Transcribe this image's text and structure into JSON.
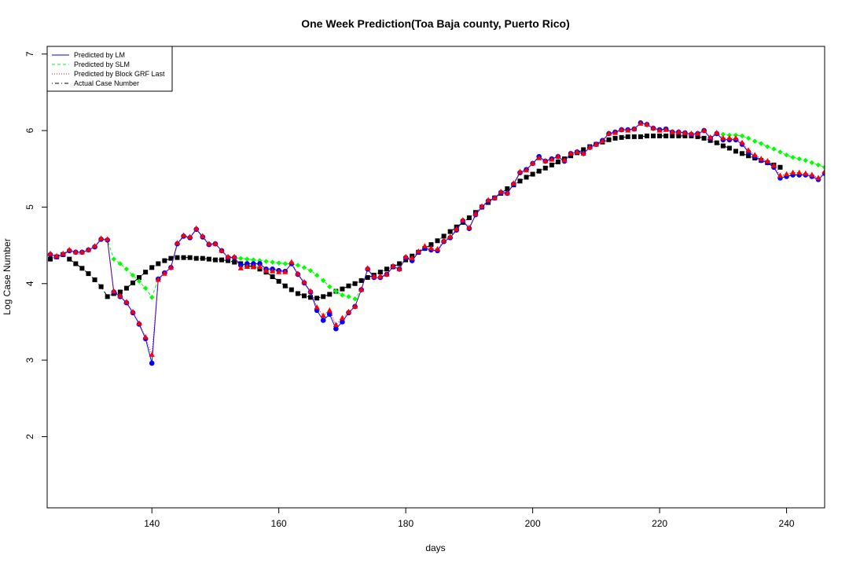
{
  "chart_data": {
    "type": "scatter",
    "title": "One Week Prediction(Toa Baja county, Puerto Rico)",
    "xlabel": "days",
    "ylabel": "Log Case Number",
    "xlim": [
      123.5,
      246
    ],
    "ylim": [
      1.07,
      7.1
    ],
    "xticks": [
      140,
      160,
      180,
      200,
      220,
      240
    ],
    "yticks": [
      2,
      3,
      4,
      5,
      6,
      7
    ],
    "grid": false,
    "legend_position": "top-left",
    "series": [
      {
        "name": "Predicted by LM",
        "line_color": "#0000ff",
        "line_style": "solid",
        "marker": "circle",
        "marker_color": "#0000ff",
        "x": [
          124,
          125,
          126,
          127,
          128,
          129,
          130,
          131,
          132,
          133,
          134,
          135,
          136,
          137,
          138,
          139,
          140,
          141,
          142,
          143,
          144,
          145,
          146,
          147,
          148,
          149,
          150,
          151,
          152,
          153,
          154,
          155,
          156,
          157,
          158,
          159,
          160,
          161,
          162,
          163,
          164,
          165,
          166,
          167,
          168,
          169,
          170,
          171,
          172,
          173,
          174,
          175,
          176,
          177,
          178,
          179,
          180,
          181,
          182,
          183,
          184,
          185,
          186,
          187,
          188,
          189,
          190,
          191,
          192,
          193,
          194,
          195,
          196,
          197,
          198,
          199,
          200,
          201,
          202,
          203,
          204,
          205,
          206,
          207,
          208,
          209,
          210,
          211,
          212,
          213,
          214,
          215,
          216,
          217,
          218,
          219,
          220,
          221,
          222,
          223,
          224,
          225,
          226,
          227,
          228,
          229,
          230,
          231,
          232,
          233,
          234,
          235,
          236,
          237,
          238,
          239,
          240,
          241,
          242,
          243,
          244,
          245,
          246
        ],
        "y": [
          4.38,
          4.35,
          4.38,
          4.43,
          4.41,
          4.41,
          4.44,
          4.48,
          4.58,
          4.57,
          3.89,
          3.83,
          3.75,
          3.62,
          3.47,
          3.28,
          2.96,
          4.06,
          4.14,
          4.21,
          4.52,
          4.62,
          4.6,
          4.71,
          4.61,
          4.51,
          4.52,
          4.43,
          4.34,
          4.34,
          4.24,
          4.26,
          4.26,
          4.26,
          4.19,
          4.19,
          4.17,
          4.16,
          4.26,
          4.12,
          4.01,
          3.89,
          3.65,
          3.52,
          3.6,
          3.41,
          3.5,
          3.62,
          3.7,
          3.92,
          4.19,
          4.08,
          4.08,
          4.12,
          4.22,
          4.19,
          4.34,
          4.3,
          4.41,
          4.46,
          4.44,
          4.43,
          4.55,
          4.6,
          4.7,
          4.82,
          4.72,
          4.9,
          5.0,
          5.08,
          5.12,
          5.19,
          5.18,
          5.3,
          5.45,
          5.49,
          5.57,
          5.66,
          5.6,
          5.63,
          5.66,
          5.6,
          5.7,
          5.72,
          5.7,
          5.78,
          5.82,
          5.87,
          5.96,
          5.98,
          6.01,
          6.01,
          6.02,
          6.1,
          6.08,
          6.03,
          6.01,
          6.02,
          5.98,
          5.98,
          5.97,
          5.95,
          5.96,
          6.0,
          5.9,
          5.96,
          5.88,
          5.88,
          5.88,
          5.82,
          5.72,
          5.66,
          5.61,
          5.58,
          5.52,
          5.38,
          5.4,
          5.42,
          5.42,
          5.42,
          5.4,
          5.36,
          5.44
        ]
      },
      {
        "name": "Predicted by SLM",
        "line_color": "#00ff00",
        "line_style": "dashed",
        "marker": "diamond",
        "marker_color": "#00ff00",
        "x": [
          124,
          125,
          126,
          127,
          128,
          129,
          130,
          131,
          132,
          133,
          134,
          135,
          136,
          137,
          138,
          139,
          140,
          141,
          142,
          143,
          144,
          145,
          146,
          147,
          148,
          149,
          150,
          151,
          152,
          153,
          154,
          155,
          156,
          157,
          158,
          159,
          160,
          161,
          162,
          163,
          164,
          165,
          166,
          167,
          168,
          169,
          170,
          171,
          172,
          173,
          174,
          175,
          176,
          177,
          178,
          179,
          180,
          181,
          182,
          183,
          184,
          185,
          186,
          187,
          188,
          189,
          190,
          191,
          192,
          193,
          194,
          195,
          196,
          197,
          198,
          199,
          200,
          201,
          202,
          203,
          204,
          205,
          206,
          207,
          208,
          209,
          210,
          211,
          212,
          213,
          214,
          215,
          216,
          217,
          218,
          219,
          220,
          221,
          222,
          223,
          224,
          225,
          226,
          227,
          228,
          229,
          230,
          231,
          232,
          233,
          234,
          235,
          236,
          237,
          238,
          239,
          240,
          241,
          242,
          243,
          244,
          245,
          246
        ],
        "y": [
          4.38,
          4.35,
          4.38,
          4.43,
          4.41,
          4.41,
          4.44,
          4.48,
          4.58,
          4.57,
          4.32,
          4.26,
          4.19,
          4.11,
          4.03,
          3.94,
          3.82,
          4.06,
          4.14,
          4.21,
          4.52,
          4.62,
          4.6,
          4.71,
          4.61,
          4.51,
          4.52,
          4.43,
          4.34,
          4.34,
          4.33,
          4.32,
          4.31,
          4.3,
          4.29,
          4.28,
          4.27,
          4.26,
          4.26,
          4.24,
          4.21,
          4.17,
          4.11,
          4.04,
          3.96,
          3.9,
          3.85,
          3.83,
          3.8,
          3.92,
          4.19,
          4.08,
          4.08,
          4.12,
          4.22,
          4.19,
          4.34,
          4.3,
          4.41,
          4.46,
          4.44,
          4.43,
          4.55,
          4.6,
          4.7,
          4.82,
          4.72,
          4.9,
          5.0,
          5.08,
          5.12,
          5.19,
          5.18,
          5.3,
          5.45,
          5.49,
          5.57,
          5.66,
          5.6,
          5.63,
          5.66,
          5.6,
          5.7,
          5.72,
          5.7,
          5.78,
          5.82,
          5.87,
          5.96,
          5.98,
          6.01,
          6.01,
          6.02,
          6.1,
          6.08,
          6.03,
          6.01,
          6.02,
          5.98,
          5.98,
          5.97,
          5.95,
          5.96,
          6.0,
          5.9,
          5.96,
          5.95,
          5.94,
          5.94,
          5.93,
          5.9,
          5.86,
          5.83,
          5.79,
          5.76,
          5.72,
          5.68,
          5.65,
          5.63,
          5.61,
          5.58,
          5.55,
          5.52
        ]
      },
      {
        "name": "Predicted by Block GRF Last",
        "line_color": "#ff0000",
        "line_style": "dotted",
        "marker": "triangle",
        "marker_color": "#ff0000",
        "x": [
          124,
          125,
          126,
          127,
          128,
          129,
          130,
          131,
          132,
          133,
          134,
          135,
          136,
          137,
          138,
          139,
          140,
          141,
          142,
          143,
          144,
          145,
          146,
          147,
          148,
          149,
          150,
          151,
          152,
          153,
          154,
          155,
          156,
          157,
          158,
          159,
          160,
          161,
          162,
          163,
          164,
          165,
          166,
          167,
          168,
          169,
          170,
          171,
          172,
          173,
          174,
          175,
          176,
          177,
          178,
          179,
          180,
          181,
          182,
          183,
          184,
          185,
          186,
          187,
          188,
          189,
          190,
          191,
          192,
          193,
          194,
          195,
          196,
          197,
          198,
          199,
          200,
          201,
          202,
          203,
          204,
          205,
          206,
          207,
          208,
          209,
          210,
          211,
          212,
          213,
          214,
          215,
          216,
          217,
          218,
          219,
          220,
          221,
          222,
          223,
          224,
          225,
          226,
          227,
          228,
          229,
          230,
          231,
          232,
          233,
          234,
          235,
          236,
          237,
          238,
          239,
          240,
          241,
          242,
          243,
          244,
          245,
          246
        ],
        "y": [
          4.39,
          4.36,
          4.39,
          4.44,
          4.41,
          4.41,
          4.44,
          4.49,
          4.59,
          4.58,
          3.9,
          3.84,
          3.76,
          3.63,
          3.48,
          3.3,
          3.07,
          4.05,
          4.13,
          4.21,
          4.53,
          4.63,
          4.61,
          4.72,
          4.62,
          4.52,
          4.52,
          4.43,
          4.35,
          4.35,
          4.2,
          4.22,
          4.22,
          4.22,
          4.17,
          4.16,
          4.15,
          4.15,
          4.28,
          4.13,
          4.02,
          3.9,
          3.69,
          3.58,
          3.65,
          3.46,
          3.55,
          3.63,
          3.7,
          3.92,
          4.2,
          4.09,
          4.09,
          4.12,
          4.23,
          4.19,
          4.35,
          4.33,
          4.42,
          4.49,
          4.46,
          4.45,
          4.56,
          4.61,
          4.71,
          4.83,
          4.73,
          4.91,
          5.01,
          5.09,
          5.12,
          5.2,
          5.18,
          5.31,
          5.46,
          5.48,
          5.57,
          5.64,
          5.6,
          5.62,
          5.66,
          5.61,
          5.7,
          5.72,
          5.7,
          5.78,
          5.82,
          5.86,
          5.96,
          5.97,
          6.01,
          6.0,
          6.02,
          6.09,
          6.08,
          6.03,
          6.0,
          6.01,
          5.98,
          5.98,
          5.97,
          5.96,
          5.96,
          6.0,
          5.91,
          5.97,
          5.9,
          5.9,
          5.9,
          5.84,
          5.74,
          5.68,
          5.63,
          5.6,
          5.54,
          5.41,
          5.43,
          5.45,
          5.45,
          5.44,
          5.42,
          5.38,
          5.46
        ]
      },
      {
        "name": "Actual Case Number",
        "line_color": "#000000",
        "line_style": "dotdash",
        "marker": "square",
        "marker_color": "#000000",
        "x": [
          124,
          125,
          126,
          127,
          128,
          129,
          130,
          131,
          132,
          133,
          134,
          135,
          136,
          137,
          138,
          139,
          140,
          141,
          142,
          143,
          144,
          145,
          146,
          147,
          148,
          149,
          150,
          151,
          152,
          153,
          154,
          155,
          156,
          157,
          158,
          159,
          160,
          161,
          162,
          163,
          164,
          165,
          166,
          167,
          168,
          169,
          170,
          171,
          172,
          173,
          174,
          175,
          176,
          177,
          178,
          179,
          180,
          181,
          182,
          183,
          184,
          185,
          186,
          187,
          188,
          189,
          190,
          191,
          192,
          193,
          194,
          195,
          196,
          197,
          198,
          199,
          200,
          201,
          202,
          203,
          204,
          205,
          206,
          207,
          208,
          209,
          210,
          211,
          212,
          213,
          214,
          215,
          216,
          217,
          218,
          219,
          220,
          221,
          222,
          223,
          224,
          225,
          226,
          227,
          228,
          229,
          230,
          231,
          232,
          233,
          234,
          235,
          236,
          237,
          238,
          239
        ],
        "y": [
          4.32,
          4.35,
          4.38,
          4.32,
          4.26,
          4.2,
          4.13,
          4.05,
          3.96,
          3.83,
          3.87,
          3.89,
          3.94,
          4.01,
          4.08,
          4.15,
          4.21,
          4.26,
          4.3,
          4.33,
          4.34,
          4.34,
          4.34,
          4.33,
          4.33,
          4.32,
          4.31,
          4.31,
          4.3,
          4.28,
          4.26,
          4.24,
          4.22,
          4.19,
          4.15,
          4.09,
          4.03,
          3.97,
          3.92,
          3.87,
          3.84,
          3.82,
          3.81,
          3.83,
          3.86,
          3.9,
          3.93,
          3.97,
          4.0,
          4.04,
          4.08,
          4.11,
          4.15,
          4.19,
          4.22,
          4.26,
          4.31,
          4.36,
          4.41,
          4.46,
          4.51,
          4.56,
          4.62,
          4.68,
          4.74,
          4.8,
          4.86,
          4.93,
          5.0,
          5.06,
          5.12,
          5.18,
          5.24,
          5.29,
          5.34,
          5.39,
          5.43,
          5.47,
          5.51,
          5.55,
          5.59,
          5.63,
          5.67,
          5.71,
          5.75,
          5.79,
          5.82,
          5.85,
          5.88,
          5.9,
          5.91,
          5.92,
          5.92,
          5.92,
          5.93,
          5.93,
          5.93,
          5.93,
          5.93,
          5.93,
          5.93,
          5.93,
          5.92,
          5.9,
          5.87,
          5.84,
          5.8,
          5.77,
          5.73,
          5.7,
          5.67,
          5.64,
          5.61,
          5.58,
          5.55,
          5.52
        ]
      }
    ]
  }
}
